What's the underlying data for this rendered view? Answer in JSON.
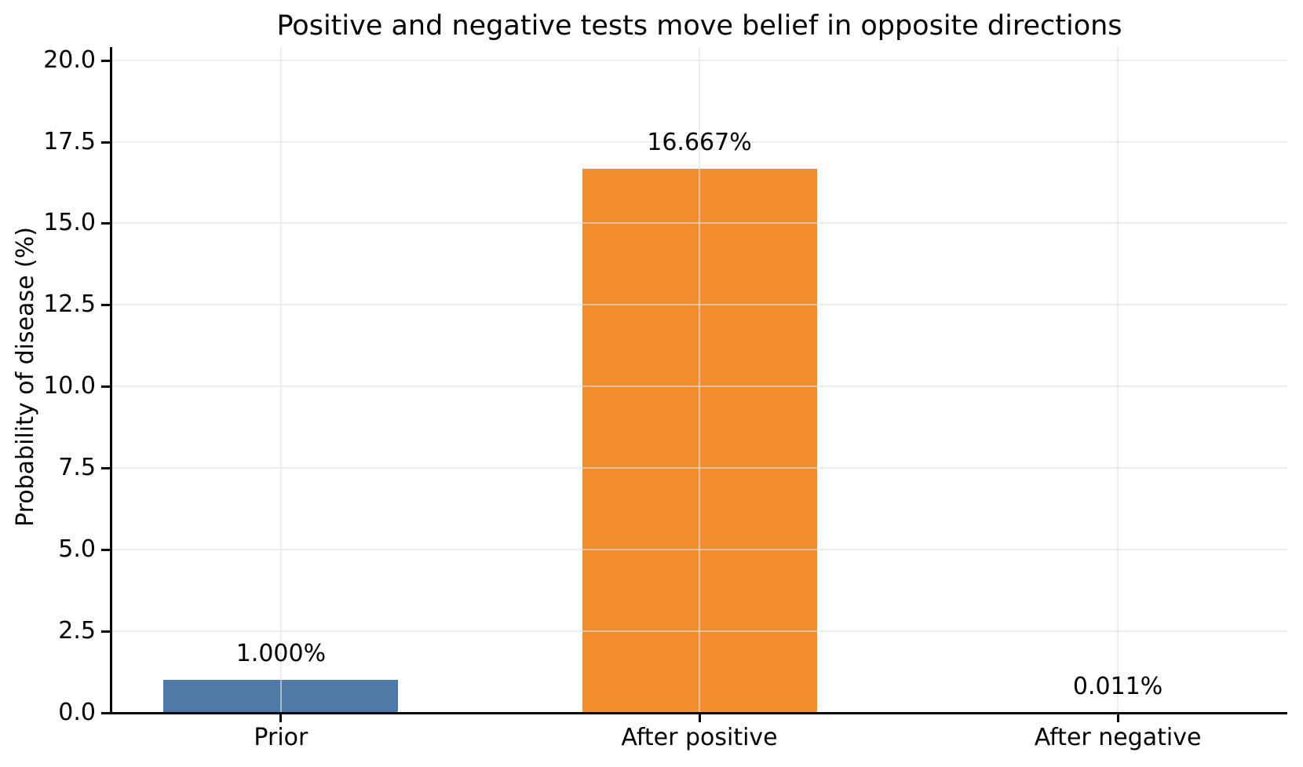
{
  "chart_data": {
    "type": "bar",
    "title": "Positive and negative tests move belief in opposite directions",
    "xlabel": "",
    "ylabel": "Probability of disease (%)",
    "categories": [
      "Prior",
      "After positive",
      "After negative"
    ],
    "values": [
      1.0,
      16.667,
      0.011
    ],
    "value_labels": [
      "1.000%",
      "16.667%",
      "0.011%"
    ],
    "bar_colors": [
      "#4E79A7",
      "#F28E2B",
      null
    ],
    "ytick_labels": [
      "0.0",
      "2.5",
      "5.0",
      "7.5",
      "10.0",
      "12.5",
      "15.0",
      "17.5",
      "20.0"
    ],
    "ylim": [
      0,
      20.4
    ],
    "grid": true,
    "grid_above_bars": true,
    "legend_position": "none"
  },
  "colors": {
    "bar_blue": "#4E79A7",
    "bar_orange": "#F28E2B",
    "axis": "#000000",
    "gridline": "#ECECEC",
    "background": "#FFFFFF",
    "text": "#000000"
  }
}
